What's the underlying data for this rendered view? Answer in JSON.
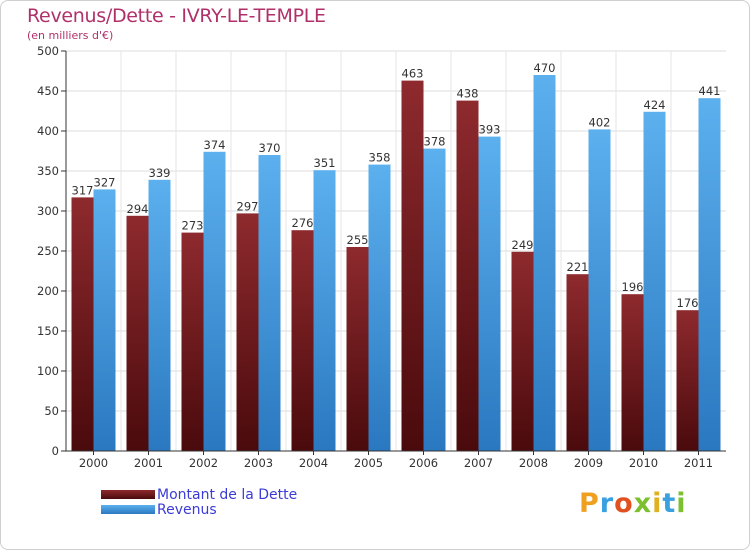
{
  "header": {
    "title": "Revenus/Dette - IVRY-LE-TEMPLE",
    "subtitle": "(en milliers d'€)"
  },
  "chart_data": {
    "type": "bar",
    "title": "Revenus/Dette - IVRY-LE-TEMPLE",
    "subtitle": "(en milliers d'€)",
    "categories": [
      "2000",
      "2001",
      "2002",
      "2003",
      "2004",
      "2005",
      "2006",
      "2007",
      "2008",
      "2009",
      "2010",
      "2011"
    ],
    "series": [
      {
        "name": "Montant de la Dette",
        "color": "#7a1e22",
        "values": [
          317,
          294,
          273,
          297,
          276,
          255,
          463,
          438,
          249,
          221,
          196,
          176
        ]
      },
      {
        "name": "Revenus",
        "color": "#4aa3e6",
        "values": [
          327,
          339,
          374,
          370,
          351,
          358,
          378,
          393,
          470,
          402,
          424,
          441
        ]
      }
    ],
    "ylim": [
      0,
      500
    ],
    "yticks": [
      0,
      50,
      100,
      150,
      200,
      250,
      300,
      350,
      400,
      450,
      500
    ],
    "grid": true,
    "legend_position": "bottom-left",
    "data_labels": true
  },
  "logo": {
    "letters": [
      "P",
      "r",
      "o",
      "x",
      "i",
      "t",
      "i"
    ],
    "colors": [
      "#f0a020",
      "#3aa0e0",
      "#e05020",
      "#7cc030",
      "#e0b020",
      "#3aa0e0",
      "#7cc030"
    ]
  }
}
